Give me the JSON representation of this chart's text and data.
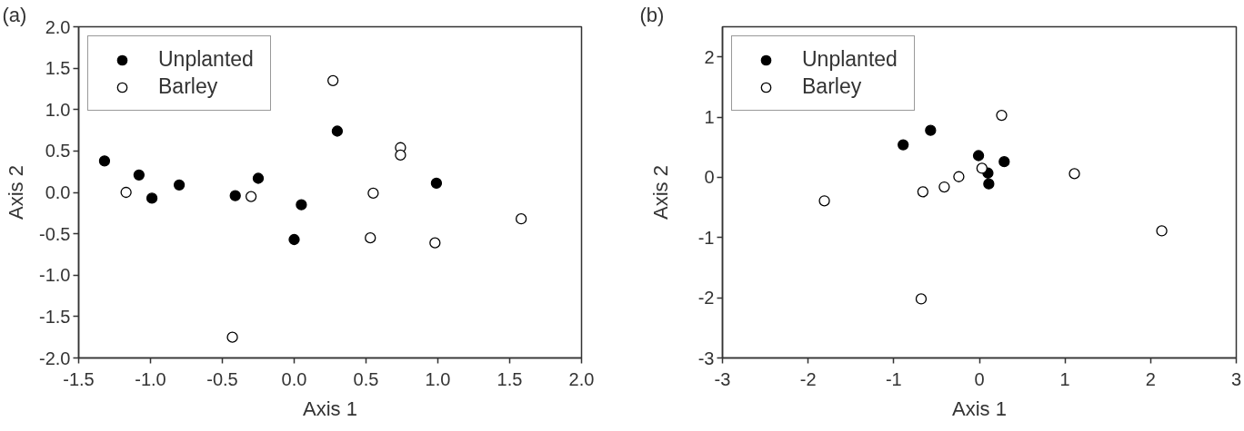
{
  "chart_data": [
    {
      "type": "scatter",
      "title": "(a)",
      "xlabel": "Axis 1",
      "ylabel": "Axis 2",
      "xlim": [
        -1.5,
        2.0
      ],
      "ylim": [
        -2.0,
        2.0
      ],
      "xticks": [
        -1.5,
        {
          "value": -1,
          "label": "-1.0"
        },
        -0.5,
        {
          "value": 0,
          "label": "0.0"
        },
        0.5,
        {
          "value": 1,
          "label": "1.0"
        },
        1.5,
        {
          "value": 2,
          "label": "2.0"
        }
      ],
      "yticks": [
        {
          "value": -2,
          "label": "-2.0"
        },
        -1.5,
        {
          "value": -1,
          "label": "-1.0"
        },
        -0.5,
        {
          "value": 0,
          "label": "0.0"
        },
        0.5,
        {
          "value": 1,
          "label": "1.0"
        },
        1.5,
        {
          "value": 2,
          "label": "2.0"
        }
      ],
      "grid": false,
      "legend": "top left",
      "marker": "circle",
      "series": [
        {
          "name": "Unplanted",
          "color": "#000000",
          "x": [
            -1.32,
            -1.08,
            -0.99,
            -0.8,
            -0.41,
            -0.25,
            0.0,
            0.05,
            0.3,
            0.99
          ],
          "values": [
            0.38,
            0.21,
            -0.07,
            0.09,
            -0.04,
            0.17,
            -0.57,
            -0.15,
            0.74,
            0.11
          ]
        },
        {
          "name": "Barley",
          "color": "#ffffff",
          "x": [
            -1.17,
            -0.43,
            -0.3,
            0.27,
            0.53,
            0.55,
            0.74,
            0.74,
            0.98,
            1.58
          ],
          "values": [
            0.0,
            -1.75,
            -0.05,
            1.35,
            -0.55,
            -0.01,
            0.54,
            0.45,
            -0.61,
            -0.32
          ]
        }
      ]
    },
    {
      "type": "scatter",
      "title": "(b)",
      "xlabel": "Axis 1",
      "ylabel": "Axis 2",
      "xlim": [
        -3,
        3
      ],
      "ylim": [
        -3,
        2.5
      ],
      "xticks": [
        -3,
        -2,
        -1,
        0,
        1,
        2,
        3
      ],
      "yticks": [
        -3,
        -2,
        -1,
        0,
        1,
        2
      ],
      "grid": false,
      "legend": "top left",
      "marker": "circle",
      "series": [
        {
          "name": "Unplanted",
          "color": "#000000",
          "x": [
            -0.89,
            -0.57,
            -0.01,
            0.1,
            0.11,
            0.29
          ],
          "values": [
            0.54,
            0.78,
            0.36,
            0.07,
            -0.11,
            0.26
          ]
        },
        {
          "name": "Barley",
          "color": "#ffffff",
          "x": [
            -1.81,
            -0.68,
            -0.66,
            -0.41,
            -0.24,
            0.03,
            0.26,
            1.11,
            2.13
          ],
          "values": [
            -0.39,
            -2.02,
            -0.24,
            -0.16,
            0.01,
            0.15,
            1.03,
            0.06,
            -0.89
          ]
        }
      ]
    }
  ]
}
